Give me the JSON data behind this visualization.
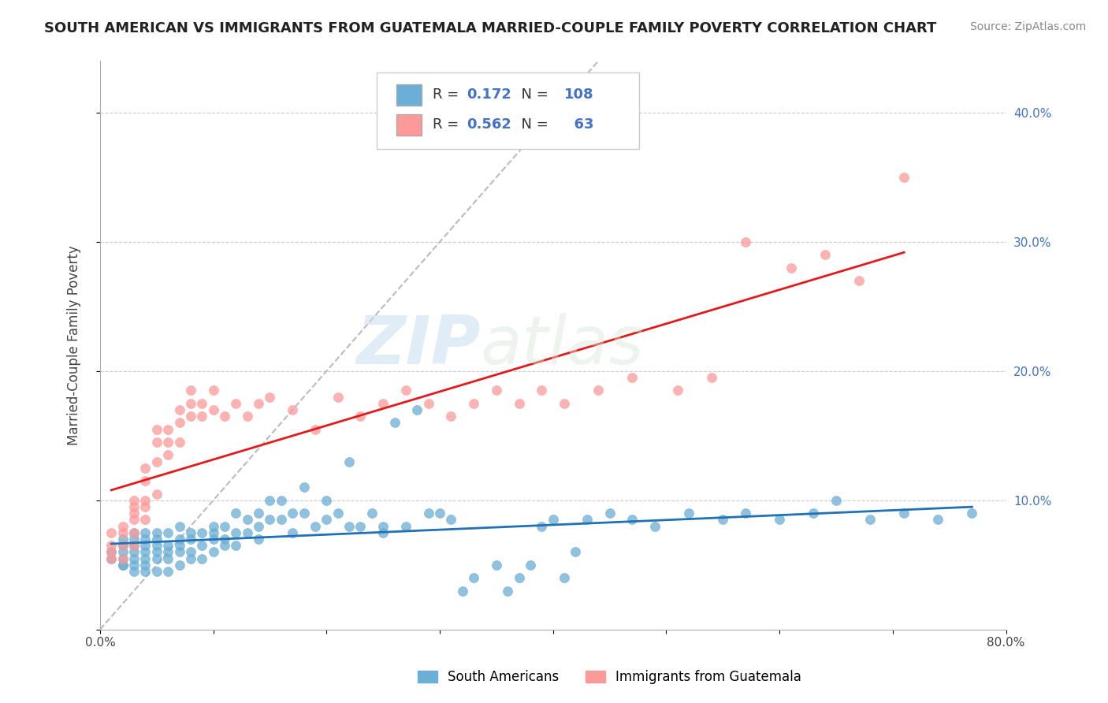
{
  "title": "SOUTH AMERICAN VS IMMIGRANTS FROM GUATEMALA MARRIED-COUPLE FAMILY POVERTY CORRELATION CHART",
  "source": "Source: ZipAtlas.com",
  "ylabel": "Married-Couple Family Poverty",
  "xlim": [
    0.0,
    0.8
  ],
  "ylim": [
    0.0,
    0.44
  ],
  "xticks": [
    0.0,
    0.1,
    0.2,
    0.3,
    0.4,
    0.5,
    0.6,
    0.7,
    0.8
  ],
  "yticks": [
    0.0,
    0.1,
    0.2,
    0.3,
    0.4
  ],
  "blue_color": "#6baed6",
  "pink_color": "#fb9a99",
  "blue_line_color": "#2171b5",
  "pink_line_color": "#e31a1c",
  "diag_line_color": "#bbbbbb",
  "R_blue": 0.172,
  "N_blue": 108,
  "R_pink": 0.562,
  "N_pink": 63,
  "legend_label_blue": "South Americans",
  "legend_label_pink": "Immigrants from Guatemala",
  "watermark_zip": "ZIP",
  "watermark_atlas": "atlas",
  "blue_scatter_x": [
    0.01,
    0.01,
    0.02,
    0.02,
    0.02,
    0.02,
    0.02,
    0.02,
    0.03,
    0.03,
    0.03,
    0.03,
    0.03,
    0.03,
    0.03,
    0.04,
    0.04,
    0.04,
    0.04,
    0.04,
    0.04,
    0.04,
    0.05,
    0.05,
    0.05,
    0.05,
    0.05,
    0.05,
    0.06,
    0.06,
    0.06,
    0.06,
    0.06,
    0.07,
    0.07,
    0.07,
    0.07,
    0.07,
    0.08,
    0.08,
    0.08,
    0.08,
    0.09,
    0.09,
    0.09,
    0.1,
    0.1,
    0.1,
    0.1,
    0.11,
    0.11,
    0.11,
    0.12,
    0.12,
    0.12,
    0.13,
    0.13,
    0.14,
    0.14,
    0.14,
    0.15,
    0.15,
    0.16,
    0.16,
    0.17,
    0.17,
    0.18,
    0.18,
    0.19,
    0.2,
    0.2,
    0.21,
    0.22,
    0.22,
    0.23,
    0.24,
    0.25,
    0.25,
    0.26,
    0.27,
    0.28,
    0.29,
    0.3,
    0.31,
    0.32,
    0.33,
    0.35,
    0.36,
    0.37,
    0.38,
    0.39,
    0.4,
    0.41,
    0.42,
    0.43,
    0.45,
    0.47,
    0.49,
    0.52,
    0.55,
    0.57,
    0.6,
    0.63,
    0.65,
    0.68,
    0.71,
    0.74,
    0.77
  ],
  "blue_scatter_y": [
    0.055,
    0.06,
    0.05,
    0.06,
    0.07,
    0.055,
    0.065,
    0.05,
    0.06,
    0.07,
    0.055,
    0.065,
    0.05,
    0.045,
    0.075,
    0.065,
    0.055,
    0.045,
    0.07,
    0.05,
    0.06,
    0.075,
    0.065,
    0.055,
    0.045,
    0.07,
    0.06,
    0.075,
    0.065,
    0.055,
    0.075,
    0.06,
    0.045,
    0.07,
    0.06,
    0.05,
    0.08,
    0.065,
    0.07,
    0.06,
    0.075,
    0.055,
    0.075,
    0.065,
    0.055,
    0.08,
    0.07,
    0.06,
    0.075,
    0.08,
    0.07,
    0.065,
    0.09,
    0.075,
    0.065,
    0.085,
    0.075,
    0.09,
    0.08,
    0.07,
    0.1,
    0.085,
    0.1,
    0.085,
    0.09,
    0.075,
    0.11,
    0.09,
    0.08,
    0.1,
    0.085,
    0.09,
    0.08,
    0.13,
    0.08,
    0.09,
    0.08,
    0.075,
    0.16,
    0.08,
    0.17,
    0.09,
    0.09,
    0.085,
    0.03,
    0.04,
    0.05,
    0.03,
    0.04,
    0.05,
    0.08,
    0.085,
    0.04,
    0.06,
    0.085,
    0.09,
    0.085,
    0.08,
    0.09,
    0.085,
    0.09,
    0.085,
    0.09,
    0.1,
    0.085,
    0.09,
    0.085,
    0.09
  ],
  "pink_scatter_x": [
    0.01,
    0.01,
    0.01,
    0.01,
    0.02,
    0.02,
    0.02,
    0.02,
    0.03,
    0.03,
    0.03,
    0.03,
    0.03,
    0.03,
    0.04,
    0.04,
    0.04,
    0.04,
    0.04,
    0.05,
    0.05,
    0.05,
    0.05,
    0.06,
    0.06,
    0.06,
    0.07,
    0.07,
    0.07,
    0.08,
    0.08,
    0.08,
    0.09,
    0.09,
    0.1,
    0.1,
    0.11,
    0.12,
    0.13,
    0.14,
    0.15,
    0.17,
    0.19,
    0.21,
    0.23,
    0.25,
    0.27,
    0.29,
    0.31,
    0.33,
    0.35,
    0.37,
    0.39,
    0.41,
    0.44,
    0.47,
    0.51,
    0.54,
    0.57,
    0.61,
    0.64,
    0.67,
    0.71
  ],
  "pink_scatter_y": [
    0.055,
    0.065,
    0.075,
    0.06,
    0.08,
    0.065,
    0.055,
    0.075,
    0.09,
    0.1,
    0.075,
    0.085,
    0.095,
    0.065,
    0.1,
    0.115,
    0.125,
    0.085,
    0.095,
    0.13,
    0.145,
    0.105,
    0.155,
    0.135,
    0.145,
    0.155,
    0.16,
    0.17,
    0.145,
    0.165,
    0.175,
    0.185,
    0.165,
    0.175,
    0.17,
    0.185,
    0.165,
    0.175,
    0.165,
    0.175,
    0.18,
    0.17,
    0.155,
    0.18,
    0.165,
    0.175,
    0.185,
    0.175,
    0.165,
    0.175,
    0.185,
    0.175,
    0.185,
    0.175,
    0.185,
    0.195,
    0.185,
    0.195,
    0.3,
    0.28,
    0.29,
    0.27,
    0.35
  ]
}
